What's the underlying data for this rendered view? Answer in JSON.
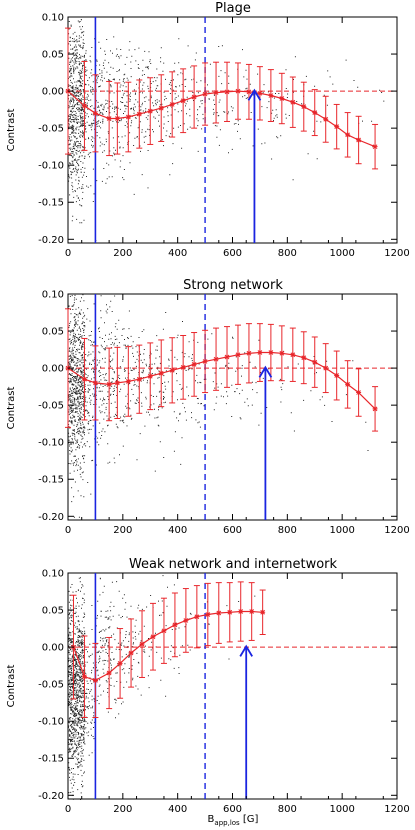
{
  "colors": {
    "scatter": "#000000",
    "binned": "#e8262b",
    "marker": "#1a24e0",
    "axis": "#000000"
  },
  "chart_data": [
    {
      "type": "scatter",
      "title": "Plage",
      "ylabel": "Contrast",
      "xlabel": "",
      "xlim": [
        0,
        1200
      ],
      "ylim": [
        -0.205,
        0.1
      ],
      "xticks": [
        "0",
        "200",
        "400",
        "600",
        "800",
        "1000",
        "1200"
      ],
      "yticks": [
        "-0.20",
        "-0.15",
        "-0.10",
        "-0.05",
        "0.00",
        "0.05",
        "0.10"
      ],
      "vlines": {
        "solid": 100,
        "dashed": 500
      },
      "zero_line": 0,
      "arrow_x": 680,
      "series": [
        {
          "x": [
            0,
            60,
            100,
            150,
            180,
            220,
            260,
            300,
            340,
            380,
            420,
            460,
            500,
            540,
            580,
            620,
            660,
            700,
            740,
            780,
            820,
            860,
            900,
            940,
            980,
            1020,
            1060,
            1120
          ],
          "y": [
            0.0,
            -0.02,
            -0.03,
            -0.037,
            -0.037,
            -0.035,
            -0.031,
            -0.027,
            -0.023,
            -0.018,
            -0.013,
            -0.008,
            -0.004,
            -0.002,
            -0.001,
            0.0,
            -0.001,
            -0.003,
            -0.006,
            -0.01,
            -0.015,
            -0.021,
            -0.029,
            -0.038,
            -0.048,
            -0.059,
            -0.066,
            -0.075
          ],
          "err": [
            0.085,
            0.06,
            0.052,
            0.05,
            0.048,
            0.047,
            0.046,
            0.045,
            0.045,
            0.044,
            0.043,
            0.042,
            0.042,
            0.041,
            0.04,
            0.038,
            0.037,
            0.036,
            0.035,
            0.034,
            0.034,
            0.033,
            0.031,
            0.031,
            0.03,
            0.03,
            0.032,
            0.03
          ]
        }
      ]
    },
    {
      "type": "scatter",
      "title": "Strong network",
      "ylabel": "Contrast",
      "xlabel": "",
      "xlim": [
        0,
        1200
      ],
      "ylim": [
        -0.205,
        0.1
      ],
      "xticks": [
        "0",
        "200",
        "400",
        "600",
        "800",
        "1000",
        "1200"
      ],
      "yticks": [
        "-0.20",
        "-0.15",
        "-0.10",
        "-0.05",
        "0.00",
        "0.05",
        "0.10"
      ],
      "vlines": {
        "solid": 100,
        "dashed": 500
      },
      "zero_line": 0,
      "arrow_x": 720,
      "series": [
        {
          "x": [
            0,
            60,
            100,
            150,
            180,
            220,
            260,
            300,
            340,
            380,
            420,
            460,
            500,
            540,
            580,
            620,
            660,
            700,
            740,
            780,
            820,
            860,
            900,
            940,
            980,
            1020,
            1060,
            1120
          ],
          "y": [
            0.0,
            -0.015,
            -0.02,
            -0.022,
            -0.02,
            -0.018,
            -0.015,
            -0.011,
            -0.007,
            -0.003,
            0.001,
            0.005,
            0.009,
            0.012,
            0.015,
            0.018,
            0.02,
            0.021,
            0.021,
            0.02,
            0.018,
            0.014,
            0.008,
            0.0,
            -0.01,
            -0.022,
            -0.033,
            -0.055
          ],
          "err": [
            0.08,
            0.055,
            0.05,
            0.049,
            0.048,
            0.047,
            0.046,
            0.045,
            0.045,
            0.044,
            0.043,
            0.043,
            0.042,
            0.042,
            0.041,
            0.04,
            0.04,
            0.039,
            0.038,
            0.037,
            0.036,
            0.035,
            0.034,
            0.033,
            0.033,
            0.032,
            0.032,
            0.03
          ]
        }
      ]
    },
    {
      "type": "scatter",
      "title": "Weak network and internetwork",
      "ylabel": "Contrast",
      "xlabel": "B_app,los [G]",
      "xlim": [
        0,
        1200
      ],
      "ylim": [
        -0.205,
        0.1
      ],
      "xticks": [
        "0",
        "200",
        "400",
        "600",
        "800",
        "1000",
        "1200"
      ],
      "yticks": [
        "-0.20",
        "-0.15",
        "-0.10",
        "-0.05",
        "0.00",
        "0.05",
        "0.10"
      ],
      "vlines": {
        "solid": 100,
        "dashed": 500
      },
      "zero_line": 0,
      "arrow_x": 650,
      "series": [
        {
          "x": [
            20,
            60,
            100,
            150,
            190,
            230,
            270,
            310,
            350,
            390,
            430,
            470,
            510,
            550,
            590,
            630,
            670,
            710
          ],
          "y": [
            0.0,
            -0.04,
            -0.045,
            -0.035,
            -0.022,
            -0.008,
            0.004,
            0.014,
            0.022,
            0.03,
            0.036,
            0.041,
            0.044,
            0.046,
            0.047,
            0.048,
            0.048,
            0.047
          ],
          "err": [
            0.07,
            0.055,
            0.05,
            0.048,
            0.047,
            0.046,
            0.045,
            0.045,
            0.044,
            0.043,
            0.043,
            0.042,
            0.042,
            0.041,
            0.04,
            0.04,
            0.039,
            0.03
          ]
        }
      ]
    }
  ]
}
